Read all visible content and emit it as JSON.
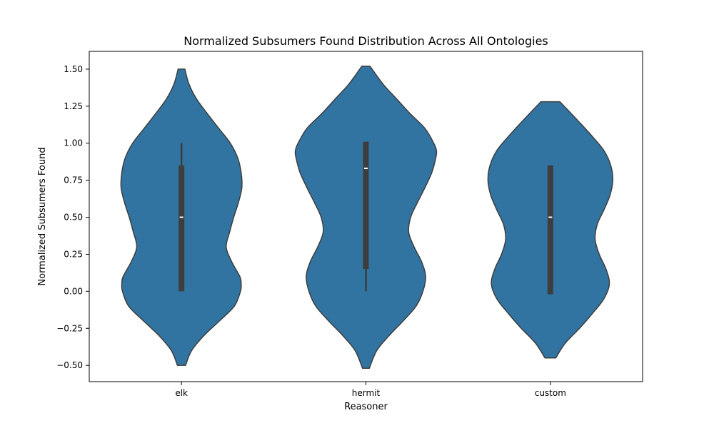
{
  "chart_data": {
    "type": "violin",
    "title": "Normalized Subsumers Found Distribution Across All Ontologies",
    "xlabel": "Reasoner",
    "ylabel": "Normalized Subsumers Found",
    "ylim": [
      -0.61,
      1.62
    ],
    "yticks": [
      -0.5,
      -0.25,
      0.0,
      0.25,
      0.5,
      0.75,
      1.0,
      1.25,
      1.5
    ],
    "ytick_labels": [
      "−0.50",
      "−0.25",
      "0.00",
      "0.25",
      "0.50",
      "0.75",
      "1.00",
      "1.25",
      "1.50"
    ],
    "categories": [
      "elk",
      "hermit",
      "custom"
    ],
    "grid": false,
    "fill_color": "#3274a1",
    "edge_color": "#3d3d3d",
    "box_color": "#3d3d3d",
    "median_color": "#ffffff",
    "violins": [
      {
        "category": "elk",
        "min": -0.5,
        "max": 1.5,
        "q1": 0.0,
        "median": 0.5,
        "q3": 0.85,
        "whisker_low": 0.0,
        "whisker_high": 1.0,
        "density": [
          [
            -0.5,
            0.06
          ],
          [
            -0.4,
            0.15
          ],
          [
            -0.3,
            0.33
          ],
          [
            -0.2,
            0.56
          ],
          [
            -0.1,
            0.78
          ],
          [
            0.0,
            0.87
          ],
          [
            0.05,
            0.88
          ],
          [
            0.1,
            0.86
          ],
          [
            0.2,
            0.74
          ],
          [
            0.3,
            0.66
          ],
          [
            0.4,
            0.71
          ],
          [
            0.5,
            0.77
          ],
          [
            0.6,
            0.84
          ],
          [
            0.7,
            0.89
          ],
          [
            0.8,
            0.88
          ],
          [
            0.9,
            0.83
          ],
          [
            1.0,
            0.72
          ],
          [
            1.1,
            0.55
          ],
          [
            1.2,
            0.38
          ],
          [
            1.3,
            0.22
          ],
          [
            1.4,
            0.11
          ],
          [
            1.5,
            0.05
          ]
        ]
      },
      {
        "category": "hermit",
        "min": -0.52,
        "max": 1.52,
        "q1": 0.15,
        "median": 0.83,
        "q3": 1.01,
        "whisker_low": 0.0,
        "whisker_high": 1.01,
        "density": [
          [
            -0.52,
            0.05
          ],
          [
            -0.4,
            0.16
          ],
          [
            -0.3,
            0.34
          ],
          [
            -0.2,
            0.55
          ],
          [
            -0.1,
            0.74
          ],
          [
            0.0,
            0.84
          ],
          [
            0.1,
            0.88
          ],
          [
            0.2,
            0.82
          ],
          [
            0.3,
            0.71
          ],
          [
            0.4,
            0.63
          ],
          [
            0.5,
            0.66
          ],
          [
            0.6,
            0.76
          ],
          [
            0.7,
            0.87
          ],
          [
            0.8,
            0.97
          ],
          [
            0.9,
            1.03
          ],
          [
            0.95,
            1.04
          ],
          [
            1.0,
            1.0
          ],
          [
            1.1,
            0.87
          ],
          [
            1.2,
            0.65
          ],
          [
            1.3,
            0.45
          ],
          [
            1.4,
            0.25
          ],
          [
            1.52,
            0.06
          ]
        ]
      },
      {
        "category": "custom",
        "min": -0.45,
        "max": 1.28,
        "q1": -0.02,
        "median": 0.5,
        "q3": 0.85,
        "whisker_low": -0.02,
        "whisker_high": 0.85,
        "density": [
          [
            -0.45,
            0.08
          ],
          [
            -0.35,
            0.22
          ],
          [
            -0.25,
            0.43
          ],
          [
            -0.15,
            0.62
          ],
          [
            -0.05,
            0.79
          ],
          [
            0.05,
            0.87
          ],
          [
            0.15,
            0.82
          ],
          [
            0.25,
            0.72
          ],
          [
            0.35,
            0.66
          ],
          [
            0.45,
            0.69
          ],
          [
            0.55,
            0.79
          ],
          [
            0.65,
            0.88
          ],
          [
            0.75,
            0.92
          ],
          [
            0.85,
            0.89
          ],
          [
            0.95,
            0.79
          ],
          [
            1.05,
            0.61
          ],
          [
            1.15,
            0.41
          ],
          [
            1.28,
            0.14
          ]
        ]
      }
    ]
  }
}
